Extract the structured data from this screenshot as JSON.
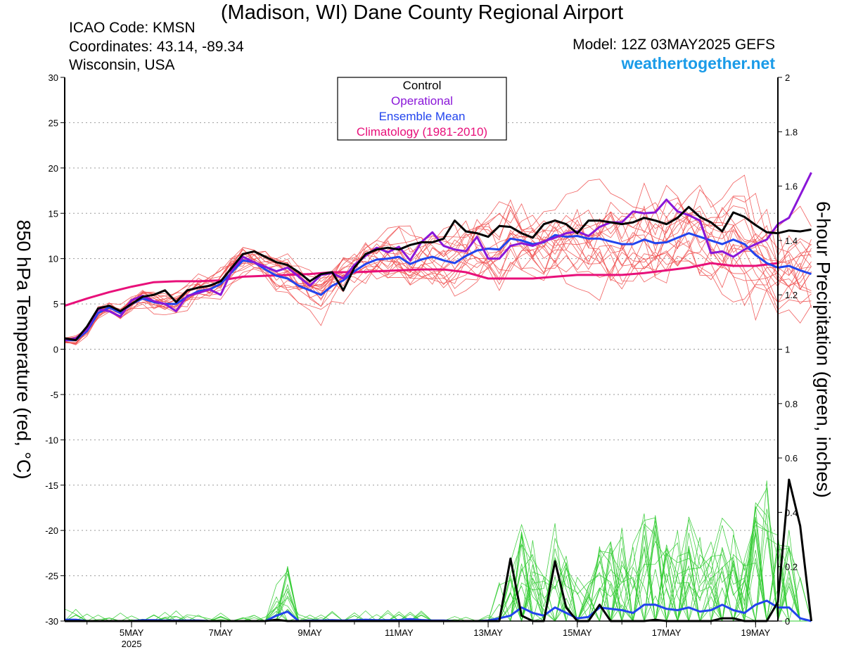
{
  "header": {
    "title": "(Madison, WI) Dane County Regional Airport",
    "icao": "ICAO Code: KMSN",
    "coordinates": "Coordinates: 43.14, -89.34",
    "region": "Wisconsin, USA",
    "model": "Model: 12Z 03MAY2025 GEFS",
    "site": "weathertogether.net"
  },
  "colors": {
    "members_temp": "#f05050",
    "members_precip": "#33cc33",
    "control": "#000000",
    "operational": "#8a16d8",
    "mean": "#2244ee",
    "climatology": "#e8107a",
    "site": "#1a9be8"
  },
  "chart_data": {
    "type": "line",
    "title": "(Madison, WI) Dane County Regional Airport",
    "ylabel": "850 hPa Temperature (red, °C)",
    "y2label": "6-hour Precipitation (green, inches)",
    "ylim": [
      -30,
      30
    ],
    "y2lim": [
      0,
      2
    ],
    "xlim": [
      3.5,
      19.5
    ],
    "grid": "horizontal dotted",
    "legend_position": "top-center",
    "legend": [
      "Control",
      "Operational",
      "Ensemble Mean",
      "Climatology (1981-2010)"
    ],
    "x_ticks": [
      {
        "x": 5,
        "label": "5MAY",
        "sublabel": "2025"
      },
      {
        "x": 7,
        "label": "7MAY"
      },
      {
        "x": 9,
        "label": "9MAY"
      },
      {
        "x": 11,
        "label": "11MAY"
      },
      {
        "x": 13,
        "label": "13MAY"
      },
      {
        "x": 15,
        "label": "15MAY"
      },
      {
        "x": 17,
        "label": "17MAY"
      },
      {
        "x": 19,
        "label": "19MAY"
      }
    ],
    "y_ticks": [
      30,
      25,
      20,
      15,
      10,
      5,
      0,
      -5,
      -10,
      -15,
      -20,
      -25,
      -30
    ],
    "y2_ticks": [
      2,
      1.8,
      1.6,
      1.4,
      1.2,
      1,
      0.8,
      0.6,
      0.4,
      0.2,
      0
    ],
    "x_step_days": 0.25,
    "x_start_day": 3.5,
    "series": [
      {
        "name": "Climatology (1981-2010)",
        "key": "climatology",
        "axis": "temp",
        "x": [
          3.5,
          4.0,
          4.5,
          5.0,
          5.5,
          6.0,
          6.5,
          7.0,
          7.5,
          8.0,
          8.5,
          9.0,
          9.5,
          10.0,
          10.5,
          11.0,
          11.5,
          12.0,
          12.5,
          13.0,
          13.5,
          14.0,
          14.5,
          15.0,
          15.5,
          16.0,
          16.5,
          17.0,
          17.5,
          18.0,
          18.5,
          19.0,
          19.5
        ],
        "values": [
          4.8,
          5.6,
          6.3,
          6.9,
          7.4,
          7.5,
          7.5,
          7.6,
          8.0,
          8.1,
          8.2,
          8.3,
          8.5,
          8.5,
          8.6,
          8.7,
          8.8,
          8.8,
          8.5,
          7.8,
          7.8,
          7.8,
          8.0,
          8.2,
          8.2,
          8.2,
          8.4,
          8.7,
          9.0,
          9.5,
          9.2,
          9.2,
          9.5
        ]
      },
      {
        "name": "Control",
        "key": "control",
        "axis": "temp",
        "values": [
          1.2,
          1.0,
          2.5,
          4.5,
          4.8,
          4.2,
          5.0,
          5.8,
          6.0,
          6.5,
          5.2,
          6.5,
          6.8,
          7.0,
          7.5,
          9.0,
          10.5,
          10.8,
          10.2,
          9.6,
          9.3,
          8.5,
          7.5,
          8.3,
          8.5,
          6.5,
          9.0,
          10.5,
          11.0,
          11.2,
          11.0,
          11.5,
          11.8,
          11.8,
          12.2,
          14.2,
          13.0,
          12.8,
          12.4,
          13.6,
          13.5,
          12.8,
          12.3,
          13.8,
          14.2,
          13.8,
          12.8,
          14.2,
          14.2,
          14.0,
          13.8,
          14.0,
          14.5,
          14.2,
          13.8,
          14.5,
          15.7,
          14.6,
          14.0,
          13.0,
          15.1,
          14.6,
          13.7,
          12.9,
          12.8,
          13.1,
          13.0,
          13.2
        ]
      },
      {
        "name": "Operational",
        "key": "operational",
        "axis": "temp",
        "values": [
          1.0,
          1.2,
          2.2,
          4.4,
          4.2,
          3.6,
          5.4,
          5.9,
          5.3,
          5.0,
          4.2,
          5.9,
          6.2,
          6.6,
          6.0,
          8.7,
          10.2,
          9.6,
          9.1,
          8.6,
          9.0,
          8.0,
          7.0,
          8.2,
          8.4,
          7.8,
          9.3,
          10.3,
          11.2,
          10.7,
          11.3,
          9.8,
          11.8,
          12.9,
          11.4,
          11.0,
          10.8,
          12.4,
          10.0,
          10.0,
          11.4,
          11.7,
          11.4,
          11.9,
          12.3,
          12.8,
          13.0,
          12.5,
          13.5,
          14.0,
          14.0,
          15.2,
          15.0,
          15.1,
          16.5,
          15.2,
          14.8,
          14.2,
          10.6,
          10.8,
          10.2,
          11.0,
          11.6,
          12.1,
          13.8,
          14.5,
          17.0,
          19.5
        ]
      },
      {
        "name": "Ensemble Mean",
        "key": "mean",
        "axis": "temp",
        "values": [
          1.0,
          1.0,
          2.0,
          4.0,
          4.6,
          4.0,
          5.0,
          5.6,
          5.2,
          5.0,
          5.0,
          5.8,
          6.4,
          6.6,
          7.2,
          8.5,
          9.8,
          9.6,
          8.8,
          8.1,
          7.8,
          7.0,
          6.5,
          6.0,
          7.0,
          7.6,
          8.6,
          9.4,
          9.9,
          10.0,
          10.2,
          9.4,
          9.9,
          10.2,
          9.8,
          9.5,
          10.3,
          10.9,
          11.1,
          11.0,
          12.2,
          12.0,
          11.6,
          11.8,
          12.6,
          12.4,
          12.5,
          12.2,
          12.2,
          11.9,
          11.6,
          11.6,
          12.1,
          11.7,
          11.8,
          12.3,
          12.8,
          12.4,
          12.0,
          11.6,
          12.1,
          11.6,
          10.4,
          9.5,
          9.0,
          9.2,
          8.7,
          8.3
        ]
      },
      {
        "name": "Control",
        "key": "control",
        "axis": "precip",
        "values": [
          0.0,
          0.0,
          0.0,
          0.0,
          0.0,
          0.0,
          0.0,
          0.0,
          0.0,
          0.0,
          0.0,
          0.0,
          0.0,
          0.0,
          0.0,
          0.0,
          0.0,
          0.0,
          0.0,
          0.005,
          0.0,
          0.0,
          0.0,
          0.0,
          0.0,
          0.0,
          0.0,
          0.0,
          0.0,
          0.0,
          0.0,
          0.0,
          0.0,
          0.0,
          0.0,
          0.0,
          0.0,
          0.0,
          0.0,
          0.0,
          0.23,
          0.02,
          0.0,
          0.0,
          0.22,
          0.05,
          0.0,
          0.0,
          0.06,
          0.0,
          0.0,
          0.0,
          0.0,
          0.005,
          0.0,
          0.0,
          0.0,
          0.0,
          0.0,
          0.01,
          0.01,
          0.0,
          0.0,
          0.0,
          0.07,
          0.52,
          0.35,
          0.0
        ]
      },
      {
        "name": "Ensemble Mean",
        "key": "mean",
        "axis": "precip",
        "values": [
          0.005,
          0.005,
          0.0,
          0.0,
          0.0,
          0.0,
          0.0,
          0.003,
          0.003,
          0.002,
          0.002,
          0.002,
          0.002,
          0.0,
          0.0,
          0.0,
          0.0,
          0.0,
          0.0,
          0.02,
          0.035,
          0.0,
          0.002,
          0.002,
          0.003,
          0.002,
          0.003,
          0.005,
          0.003,
          0.003,
          0.004,
          0.007,
          0.004,
          0.002,
          0.002,
          0.0,
          0.0,
          0.0,
          0.002,
          0.01,
          0.02,
          0.05,
          0.03,
          0.02,
          0.05,
          0.03,
          0.01,
          0.015,
          0.05,
          0.045,
          0.04,
          0.03,
          0.06,
          0.06,
          0.045,
          0.04,
          0.05,
          0.035,
          0.04,
          0.06,
          0.04,
          0.03,
          0.06,
          0.075,
          0.05,
          0.05,
          0.01,
          0.0
        ]
      }
    ]
  }
}
